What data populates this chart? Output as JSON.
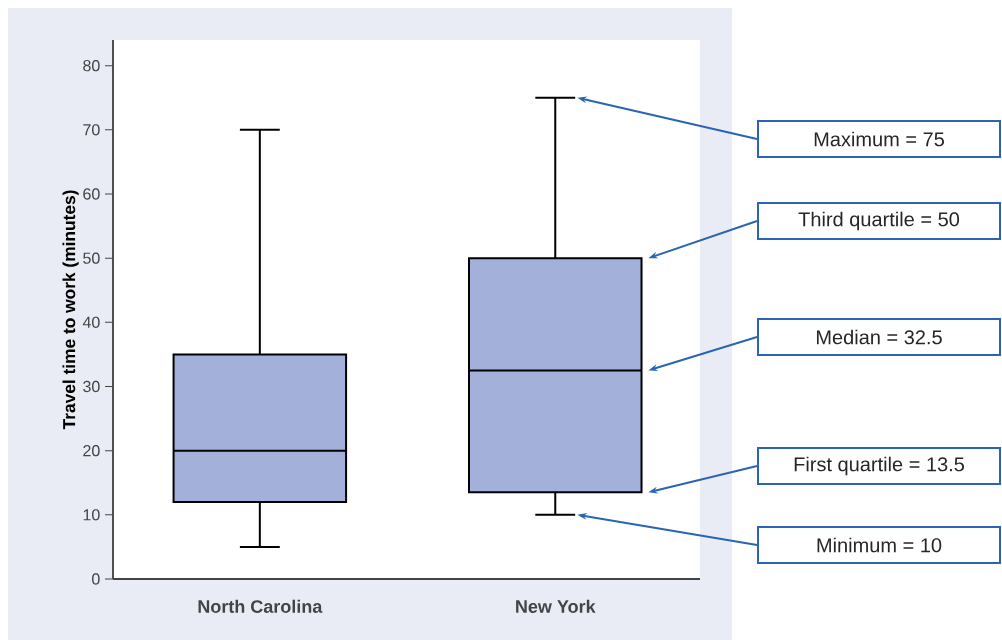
{
  "chart_data": {
    "type": "box",
    "ylabel": "Travel time to work (minutes)",
    "categories": [
      "North Carolina",
      "New York"
    ],
    "boxes": [
      {
        "low": 5,
        "q1": 12,
        "median": 20,
        "q3": 35,
        "high": 70
      },
      {
        "low": 10,
        "q1": 13.5,
        "median": 32.5,
        "q3": 50,
        "high": 75
      }
    ],
    "color": "#a3b0da",
    "ylim": [
      0,
      84
    ],
    "yticks": [
      0,
      10,
      20,
      30,
      40,
      50,
      60,
      70,
      80
    ],
    "grid": false,
    "annotations": [
      "Maximum = 75",
      "Third quartile = 50",
      "Median = 32.5",
      "First quartile = 13.5",
      "Minimum = 10"
    ]
  }
}
